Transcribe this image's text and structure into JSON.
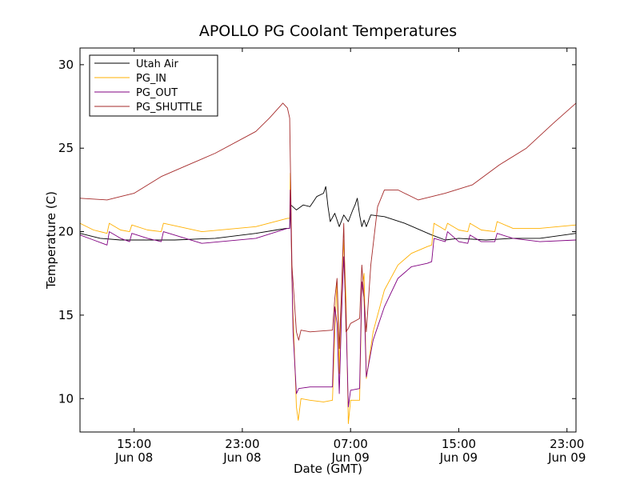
{
  "chart_data": {
    "type": "line",
    "title": "APOLLO PG Coolant Temperatures",
    "xlabel": "Date (GMT)",
    "ylabel": "Temperature (C)",
    "xlim": [
      "2009-06-08T11:00",
      "2009-06-09T23:40"
    ],
    "ylim": [
      8,
      31
    ],
    "x_ticks": [
      {
        "x": "2009-06-08T15:00",
        "time": "15:00",
        "date": "Jun 08"
      },
      {
        "x": "2009-06-08T23:00",
        "time": "23:00",
        "date": "Jun 08"
      },
      {
        "x": "2009-06-09T07:00",
        "time": "07:00",
        "date": "Jun 09"
      },
      {
        "x": "2009-06-09T15:00",
        "time": "15:00",
        "date": "Jun 09"
      },
      {
        "x": "2009-06-09T23:00",
        "time": "23:00",
        "date": "Jun 09"
      }
    ],
    "y_ticks": [
      10,
      15,
      20,
      25,
      30
    ],
    "grid": false,
    "legend_position": "top-left",
    "series": [
      {
        "name": "Utah Air",
        "color": "#000000",
        "points": [
          [
            "2009-06-08T11:00",
            19.9
          ],
          [
            "2009-06-08T12:30",
            19.6
          ],
          [
            "2009-06-08T14:00",
            19.5
          ],
          [
            "2009-06-08T16:00",
            19.5
          ],
          [
            "2009-06-08T18:00",
            19.5
          ],
          [
            "2009-06-08T21:00",
            19.6
          ],
          [
            "2009-06-09T00:00",
            19.9
          ],
          [
            "2009-06-09T01:30",
            20.1
          ],
          [
            "2009-06-09T02:15",
            20.2
          ],
          [
            "2009-06-09T02:30",
            20.2
          ],
          [
            "2009-06-09T02:35",
            21.6
          ],
          [
            "2009-06-09T03:00",
            21.3
          ],
          [
            "2009-06-09T03:30",
            21.6
          ],
          [
            "2009-06-09T04:00",
            21.5
          ],
          [
            "2009-06-09T04:30",
            22.1
          ],
          [
            "2009-06-09T05:00",
            22.3
          ],
          [
            "2009-06-09T05:10",
            22.7
          ],
          [
            "2009-06-09T05:20",
            21.5
          ],
          [
            "2009-06-09T05:30",
            20.6
          ],
          [
            "2009-06-09T05:50",
            21.1
          ],
          [
            "2009-06-09T06:10",
            20.3
          ],
          [
            "2009-06-09T06:30",
            21.0
          ],
          [
            "2009-06-09T06:50",
            20.6
          ],
          [
            "2009-06-09T07:10",
            21.3
          ],
          [
            "2009-06-09T07:20",
            21.6
          ],
          [
            "2009-06-09T07:30",
            22.0
          ],
          [
            "2009-06-09T07:40",
            21.0
          ],
          [
            "2009-06-09T07:50",
            20.3
          ],
          [
            "2009-06-09T08:00",
            20.7
          ],
          [
            "2009-06-09T08:10",
            20.3
          ],
          [
            "2009-06-09T08:30",
            21.0
          ],
          [
            "2009-06-09T09:30",
            20.9
          ],
          [
            "2009-06-09T11:00",
            20.5
          ],
          [
            "2009-06-09T13:00",
            19.8
          ],
          [
            "2009-06-09T14:00",
            19.5
          ],
          [
            "2009-06-09T15:00",
            19.6
          ],
          [
            "2009-06-09T17:00",
            19.5
          ],
          [
            "2009-06-09T19:00",
            19.6
          ],
          [
            "2009-06-09T21:00",
            19.6
          ],
          [
            "2009-06-09T23:40",
            19.9
          ]
        ]
      },
      {
        "name": "PG_IN",
        "color": "#ffb000",
        "points": [
          [
            "2009-06-08T11:00",
            20.5
          ],
          [
            "2009-06-08T12:00",
            20.1
          ],
          [
            "2009-06-08T13:00",
            19.9
          ],
          [
            "2009-06-08T13:10",
            20.5
          ],
          [
            "2009-06-08T14:00",
            20.1
          ],
          [
            "2009-06-08T14:40",
            20.0
          ],
          [
            "2009-06-08T14:50",
            20.4
          ],
          [
            "2009-06-08T16:00",
            20.1
          ],
          [
            "2009-06-08T17:00",
            20.0
          ],
          [
            "2009-06-08T17:10",
            20.5
          ],
          [
            "2009-06-08T20:00",
            20.0
          ],
          [
            "2009-06-09T00:00",
            20.3
          ],
          [
            "2009-06-09T02:20",
            20.8
          ],
          [
            "2009-06-09T02:30",
            20.8
          ],
          [
            "2009-06-09T02:33",
            23.5
          ],
          [
            "2009-06-09T02:40",
            17.0
          ],
          [
            "2009-06-09T03:00",
            9.5
          ],
          [
            "2009-06-09T03:08",
            8.7
          ],
          [
            "2009-06-09T03:20",
            10.0
          ],
          [
            "2009-06-09T04:00",
            9.9
          ],
          [
            "2009-06-09T05:00",
            9.8
          ],
          [
            "2009-06-09T05:40",
            9.9
          ],
          [
            "2009-06-09T05:50",
            14.0
          ],
          [
            "2009-06-09T06:00",
            17.0
          ],
          [
            "2009-06-09T06:10",
            11.5
          ],
          [
            "2009-06-09T06:20",
            16.5
          ],
          [
            "2009-06-09T06:30",
            19.5
          ],
          [
            "2009-06-09T06:40",
            16.0
          ],
          [
            "2009-06-09T06:50",
            8.5
          ],
          [
            "2009-06-09T07:00",
            9.9
          ],
          [
            "2009-06-09T07:40",
            9.9
          ],
          [
            "2009-06-09T07:50",
            16.5
          ],
          [
            "2009-06-09T08:00",
            17.5
          ],
          [
            "2009-06-09T08:10",
            11.2
          ],
          [
            "2009-06-09T08:40",
            14.0
          ],
          [
            "2009-06-09T09:30",
            16.5
          ],
          [
            "2009-06-09T10:30",
            18.0
          ],
          [
            "2009-06-09T11:30",
            18.7
          ],
          [
            "2009-06-09T12:40",
            19.1
          ],
          [
            "2009-06-09T13:00",
            19.2
          ],
          [
            "2009-06-09T13:10",
            20.5
          ],
          [
            "2009-06-09T14:00",
            20.1
          ],
          [
            "2009-06-09T14:10",
            20.5
          ],
          [
            "2009-06-09T15:00",
            20.1
          ],
          [
            "2009-06-09T15:40",
            20.0
          ],
          [
            "2009-06-09T15:50",
            20.5
          ],
          [
            "2009-06-09T16:40",
            20.1
          ],
          [
            "2009-06-09T17:40",
            20.0
          ],
          [
            "2009-06-09T17:50",
            20.6
          ],
          [
            "2009-06-09T19:00",
            20.2
          ],
          [
            "2009-06-09T21:00",
            20.2
          ],
          [
            "2009-06-09T23:40",
            20.4
          ]
        ]
      },
      {
        "name": "PG_OUT",
        "color": "#800080",
        "points": [
          [
            "2009-06-08T11:00",
            19.8
          ],
          [
            "2009-06-08T12:00",
            19.5
          ],
          [
            "2009-06-08T13:00",
            19.2
          ],
          [
            "2009-06-08T13:10",
            20.0
          ],
          [
            "2009-06-08T14:00",
            19.6
          ],
          [
            "2009-06-08T14:40",
            19.4
          ],
          [
            "2009-06-08T14:50",
            19.9
          ],
          [
            "2009-06-08T16:00",
            19.6
          ],
          [
            "2009-06-08T17:00",
            19.4
          ],
          [
            "2009-06-08T17:10",
            20.0
          ],
          [
            "2009-06-08T20:00",
            19.3
          ],
          [
            "2009-06-09T00:00",
            19.6
          ],
          [
            "2009-06-09T02:20",
            20.2
          ],
          [
            "2009-06-09T02:30",
            20.2
          ],
          [
            "2009-06-09T02:33",
            22.5
          ],
          [
            "2009-06-09T02:45",
            14.0
          ],
          [
            "2009-06-09T03:00",
            10.3
          ],
          [
            "2009-06-09T03:10",
            10.6
          ],
          [
            "2009-06-09T04:00",
            10.7
          ],
          [
            "2009-06-09T05:40",
            10.7
          ],
          [
            "2009-06-09T05:50",
            15.5
          ],
          [
            "2009-06-09T06:00",
            14.5
          ],
          [
            "2009-06-09T06:10",
            10.3
          ],
          [
            "2009-06-09T06:20",
            15.0
          ],
          [
            "2009-06-09T06:30",
            18.5
          ],
          [
            "2009-06-09T06:40",
            15.0
          ],
          [
            "2009-06-09T06:50",
            9.5
          ],
          [
            "2009-06-09T07:00",
            10.5
          ],
          [
            "2009-06-09T07:40",
            10.6
          ],
          [
            "2009-06-09T07:50",
            17.0
          ],
          [
            "2009-06-09T08:00",
            16.0
          ],
          [
            "2009-06-09T08:10",
            11.3
          ],
          [
            "2009-06-09T08:40",
            13.5
          ],
          [
            "2009-06-09T09:30",
            15.5
          ],
          [
            "2009-06-09T10:30",
            17.2
          ],
          [
            "2009-06-09T11:30",
            17.9
          ],
          [
            "2009-06-09T12:40",
            18.1
          ],
          [
            "2009-06-09T13:00",
            18.2
          ],
          [
            "2009-06-09T13:10",
            19.6
          ],
          [
            "2009-06-09T14:00",
            19.4
          ],
          [
            "2009-06-09T14:10",
            20.0
          ],
          [
            "2009-06-09T15:00",
            19.4
          ],
          [
            "2009-06-09T15:40",
            19.3
          ],
          [
            "2009-06-09T15:50",
            19.8
          ],
          [
            "2009-06-09T16:40",
            19.4
          ],
          [
            "2009-06-09T17:40",
            19.4
          ],
          [
            "2009-06-09T17:50",
            19.9
          ],
          [
            "2009-06-09T19:00",
            19.6
          ],
          [
            "2009-06-09T21:00",
            19.4
          ],
          [
            "2009-06-09T23:40",
            19.5
          ]
        ]
      },
      {
        "name": "PG_SHUTTLE",
        "color": "#a52a2a",
        "points": [
          [
            "2009-06-08T11:00",
            22.0
          ],
          [
            "2009-06-08T13:00",
            21.9
          ],
          [
            "2009-06-08T14:00",
            22.1
          ],
          [
            "2009-06-08T15:00",
            22.3
          ],
          [
            "2009-06-08T17:00",
            23.3
          ],
          [
            "2009-06-08T19:00",
            24.0
          ],
          [
            "2009-06-08T21:00",
            24.7
          ],
          [
            "2009-06-09T00:00",
            26.0
          ],
          [
            "2009-06-09T01:00",
            26.8
          ],
          [
            "2009-06-09T02:00",
            27.7
          ],
          [
            "2009-06-09T02:20",
            27.4
          ],
          [
            "2009-06-09T02:30",
            26.8
          ],
          [
            "2009-06-09T02:40",
            18.0
          ],
          [
            "2009-06-09T03:00",
            14.0
          ],
          [
            "2009-06-09T03:10",
            13.5
          ],
          [
            "2009-06-09T03:20",
            14.1
          ],
          [
            "2009-06-09T04:00",
            14.0
          ],
          [
            "2009-06-09T05:40",
            14.1
          ],
          [
            "2009-06-09T05:50",
            16.0
          ],
          [
            "2009-06-09T06:00",
            17.2
          ],
          [
            "2009-06-09T06:10",
            13.0
          ],
          [
            "2009-06-09T06:20",
            16.5
          ],
          [
            "2009-06-09T06:30",
            20.5
          ],
          [
            "2009-06-09T06:40",
            14.0
          ],
          [
            "2009-06-09T06:50",
            14.2
          ],
          [
            "2009-06-09T07:00",
            14.5
          ],
          [
            "2009-06-09T07:40",
            14.8
          ],
          [
            "2009-06-09T07:50",
            18.0
          ],
          [
            "2009-06-09T08:10",
            14.0
          ],
          [
            "2009-06-09T08:30",
            18.0
          ],
          [
            "2009-06-09T09:00",
            21.5
          ],
          [
            "2009-06-09T09:30",
            22.5
          ],
          [
            "2009-06-09T10:30",
            22.5
          ],
          [
            "2009-06-09T11:00",
            22.3
          ],
          [
            "2009-06-09T12:00",
            21.9
          ],
          [
            "2009-06-09T12:30",
            22.0
          ],
          [
            "2009-06-09T14:00",
            22.3
          ],
          [
            "2009-06-09T16:00",
            22.8
          ],
          [
            "2009-06-09T18:00",
            24.0
          ],
          [
            "2009-06-09T20:00",
            25.0
          ],
          [
            "2009-06-09T22:00",
            26.5
          ],
          [
            "2009-06-09T23:40",
            27.7
          ]
        ]
      }
    ]
  }
}
